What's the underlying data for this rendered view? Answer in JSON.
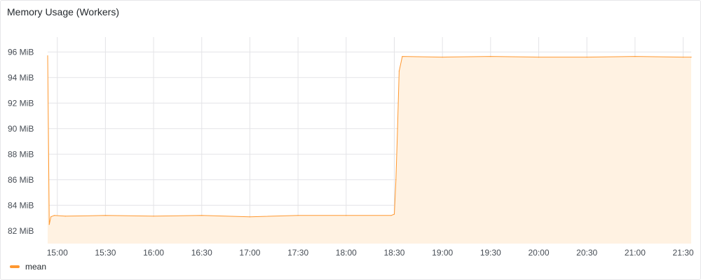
{
  "panel": {
    "title": "Memory Usage (Workers)"
  },
  "colors": {
    "series": "#ff9830",
    "fill": "#fff2e2",
    "grid": "#e4e4e7",
    "text": "#464c54"
  },
  "chart_data": {
    "type": "area",
    "title": "Memory Usage (Workers)",
    "xlabel": "",
    "ylabel": "",
    "y_unit": "MiB",
    "grid": true,
    "legend_placement": "bottom-left",
    "x_ticks": [
      "15:00",
      "15:30",
      "16:00",
      "16:30",
      "17:00",
      "17:30",
      "18:00",
      "18:30",
      "19:00",
      "19:30",
      "20:00",
      "20:30",
      "21:00",
      "21:30"
    ],
    "y_ticks": [
      "82 MiB",
      "84 MiB",
      "86 MiB",
      "88 MiB",
      "90 MiB",
      "92 MiB",
      "94 MiB",
      "96 MiB"
    ],
    "xlim": [
      "14:54",
      "21:35"
    ],
    "ylim": [
      81.0,
      97.0
    ],
    "series": [
      {
        "name": "mean",
        "x": [
          "14:54",
          "14:55",
          "14:56",
          "14:58",
          "15:05",
          "15:30",
          "16:00",
          "16:30",
          "17:00",
          "17:30",
          "18:00",
          "18:28",
          "18:30",
          "18:31",
          "18:32",
          "18:33",
          "18:35",
          "19:00",
          "19:30",
          "20:00",
          "20:30",
          "21:00",
          "21:30",
          "21:35"
        ],
        "values": [
          95.7,
          82.5,
          83.1,
          83.2,
          83.15,
          83.2,
          83.15,
          83.2,
          83.1,
          83.2,
          83.2,
          83.2,
          83.3,
          86.0,
          90.0,
          94.5,
          95.65,
          95.6,
          95.65,
          95.6,
          95.6,
          95.65,
          95.6,
          95.6
        ]
      }
    ]
  }
}
